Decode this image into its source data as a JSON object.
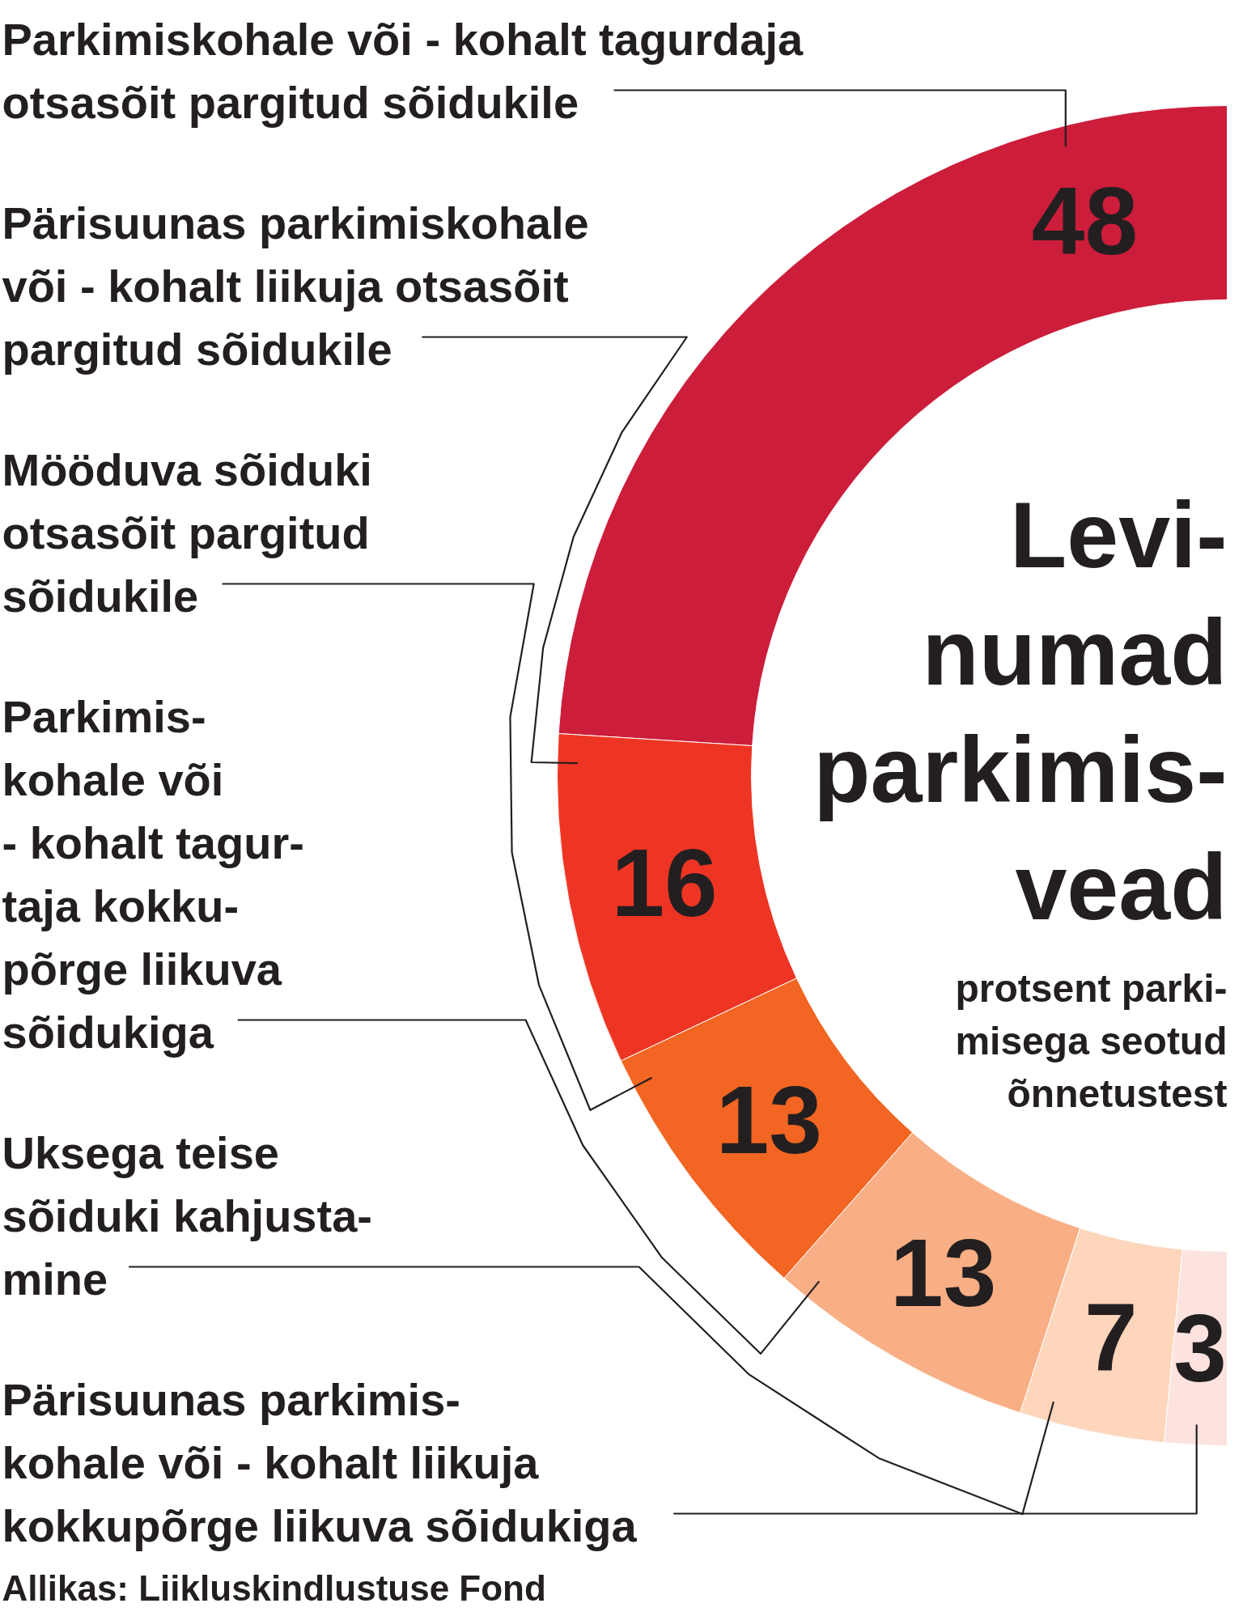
{
  "chart_data": {
    "type": "donut",
    "title": "Levi-\nnumad\nparkimis-\nvead",
    "subtitle": "protsent parki-\nmisega seotud\nõnnetustest",
    "categories": [
      "Parkimiskohale või - kohalt tagurdaja\notsasõit pargitud sõidukile",
      "Pärisuunas parkimiskohale\nvõi - kohalt liikuja otsasõit\npargitud sõidukile",
      "Mööduva sõiduki\notsasõit pargitud\nsõidukile",
      "Parkimis-\nkohale või\n- kohalt tagur-\ntaja kokku-\npõrge liikuva\nsõidukiga",
      "Uksega teise\nsõiduki kahjusta-\nmine",
      "Pärisuunas parkimis-\nkohale või - kohalt liikuja\nkokkupõrge liikuva sõidukiga"
    ],
    "values": [
      48,
      16,
      13,
      13,
      7,
      3
    ],
    "colors": [
      "#cc1d3b",
      "#ee3524",
      "#f26522",
      "#f9af85",
      "#fdd6bb",
      "#fde3df"
    ],
    "data_labels": true,
    "annotations": [
      "Allikas: Liikluskindlustuse Fond"
    ]
  }
}
